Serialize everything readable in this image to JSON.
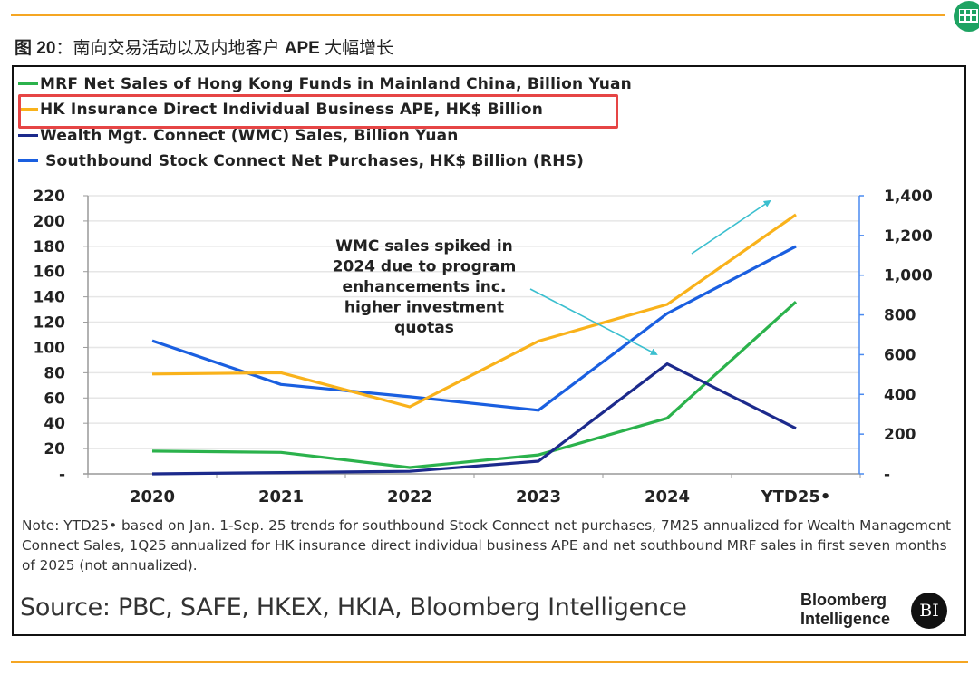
{
  "figure": {
    "title_prefix": "图 20",
    "title_sep": "：",
    "title_cn_1": "南向交易活动以及内地客户",
    "title_en": " APE ",
    "title_cn_2": "大幅增长"
  },
  "app_icon": "spreadsheet-icon",
  "chart_data": {
    "type": "line",
    "title": "",
    "categories": [
      "2020",
      "2021",
      "2022",
      "2023",
      "2024",
      "YTD25*"
    ],
    "category_labels": [
      "2020",
      "2021",
      "2022",
      "2023",
      "2024",
      "YTD25•"
    ],
    "y_left": {
      "range": [
        0,
        220
      ],
      "ticks": [
        0,
        20,
        40,
        60,
        80,
        100,
        120,
        140,
        160,
        180,
        200,
        220
      ],
      "tick_labels": [
        "-",
        "20",
        "40",
        "60",
        "80",
        "100",
        "120",
        "140",
        "160",
        "180",
        "200",
        "220"
      ]
    },
    "y_right": {
      "range": [
        0,
        1400
      ],
      "ticks": [
        0,
        200,
        400,
        600,
        800,
        1000,
        1200,
        1400
      ],
      "tick_labels": [
        "-",
        "200",
        "400",
        "600",
        "800",
        "1,000",
        "1,200",
        "1,400"
      ]
    },
    "grid": true,
    "legend_position": "top-left",
    "series": [
      {
        "name": "MRF Net Sales of Hong Kong Funds in Mainland China, Billion Yuan",
        "axis": "left",
        "color": "#2bb24c",
        "values": [
          18,
          17,
          5,
          15,
          44,
          136
        ]
      },
      {
        "name": "HK Insurance Direct Individual Business APE, HK$ Billion",
        "axis": "left",
        "color": "#f9b21b",
        "values": [
          79,
          80,
          53,
          105,
          134,
          205
        ],
        "highlighted": true
      },
      {
        "name": "Wealth Mgt. Connect (WMC) Sales, Billion Yuan",
        "axis": "left",
        "color": "#1c2a8c",
        "values": [
          0,
          1,
          2,
          10,
          87,
          36
        ]
      },
      {
        "name": "Southbound Stock Connect Net Purchases, HK$ Billion (RHS)",
        "axis": "right",
        "color": "#1a5fe0",
        "values": [
          670,
          450,
          388,
          320,
          807,
          1145
        ]
      }
    ],
    "annotations": [
      {
        "text_lines": [
          "WMC sales spiked in",
          "2024 due to program",
          "enhancements inc.",
          "higher investment",
          "quotas"
        ],
        "points_to": "WMC 2024"
      }
    ],
    "trend_arrow": "up-right"
  },
  "legend": [
    "MRF Net Sales of Hong Kong Funds in Mainland China, Billion Yuan",
    "HK Insurance Direct Individual Business APE, HK$ Billion",
    "Wealth Mgt. Connect (WMC) Sales, Billion Yuan",
    " Southbound Stock Connect Net Purchases, HK$ Billion (RHS)"
  ],
  "note": "Note: YTD25• based on Jan. 1-Sep. 25 trends for southbound Stock Connect net purchases, 7M25 annualized for Wealth Management Connect Sales, 1Q25 annualized for HK insurance direct individual business APE and net southbound MRF sales in first seven months of 2025 (not annualized).",
  "source": "Source: PBC, SAFE, HKEX, HKIA, Bloomberg Intelligence",
  "brand": {
    "line1": "Bloomberg",
    "line2": "Intelligence",
    "logo": "BI"
  }
}
